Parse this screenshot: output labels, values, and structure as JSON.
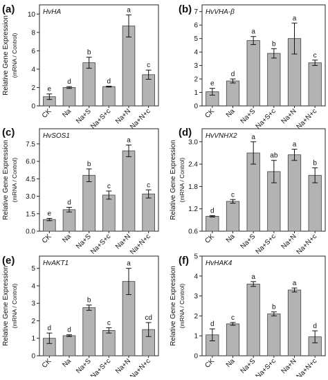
{
  "y_label_main": "Relative Gene Expression",
  "y_label_sub": "(mRNA / Control)",
  "colors": {
    "bar_fill": "#b3b3b3",
    "bar_stroke": "#404040",
    "axis": "#222222"
  },
  "chart_data": [
    {
      "panel": "(a)",
      "gene": "HvHA",
      "type": "bar",
      "categories": [
        "CK",
        "Na",
        "Na+S",
        "Na+S+c",
        "Na+N",
        "Na+N+c"
      ],
      "values": [
        1.0,
        2.0,
        4.7,
        2.1,
        8.7,
        3.4
      ],
      "errors": [
        0.3,
        0.1,
        0.6,
        0.05,
        1.2,
        0.5
      ],
      "significance": [
        "e",
        "d",
        "b",
        "d",
        "a",
        "c"
      ],
      "yticks": [
        0,
        2,
        4,
        6,
        8,
        10
      ],
      "ylim": [
        0,
        11
      ],
      "ytick_labels": [
        "0",
        "2",
        "4",
        "6",
        "8",
        "10"
      ]
    },
    {
      "panel": "(b)",
      "gene": "HvVHA-β",
      "type": "bar",
      "categories": [
        "CK",
        "Na",
        "Na+S",
        "Na+S+c",
        "Na+N",
        "Na+N+c"
      ],
      "values": [
        1.05,
        1.85,
        4.85,
        3.9,
        5.0,
        3.2
      ],
      "errors": [
        0.25,
        0.15,
        0.3,
        0.35,
        1.15,
        0.2
      ],
      "significance": [
        "e",
        "d",
        "a",
        "b",
        "a",
        "c"
      ],
      "yticks": [
        0,
        1,
        2,
        3,
        4,
        5,
        6,
        7
      ],
      "ylim": [
        0,
        7.5
      ],
      "ytick_labels": [
        "0",
        "1",
        "2",
        "3",
        "4",
        "5",
        "6",
        "7"
      ]
    },
    {
      "panel": "(c)",
      "gene": "HvSOS1",
      "type": "bar",
      "categories": [
        "CK",
        "Na",
        "Na+S",
        "Na+S+c",
        "Na+N",
        "Na+N+c"
      ],
      "values": [
        1.0,
        1.85,
        4.8,
        3.1,
        6.9,
        3.2
      ],
      "errors": [
        0.1,
        0.2,
        0.55,
        0.35,
        0.5,
        0.35
      ],
      "significance": [
        "e",
        "d",
        "b",
        "c",
        "a",
        "c"
      ],
      "yticks": [
        0,
        1.5,
        3.0,
        4.5,
        6.0,
        7.5
      ],
      "ylim": [
        0,
        8.8
      ],
      "ytick_labels": [
        "0.0",
        "1.5",
        "3.0",
        "4.5",
        "6.0",
        "7.5"
      ]
    },
    {
      "panel": "(d)",
      "gene": "HvVNHX2",
      "type": "bar",
      "categories": [
        "CK",
        "Na",
        "Na+S",
        "Na+S+c",
        "Na+N",
        "Na+N+c"
      ],
      "values": [
        1.0,
        1.4,
        2.7,
        2.2,
        2.65,
        2.1
      ],
      "errors": [
        0.02,
        0.05,
        0.3,
        0.3,
        0.15,
        0.2
      ],
      "significance": [
        "d",
        "c",
        "a",
        "ab",
        "a",
        "b"
      ],
      "yticks": [
        0.6,
        1.2,
        1.8,
        2.4,
        3.0
      ],
      "ylim": [
        0.6,
        3.35
      ],
      "ytick_labels": [
        "0.6",
        "1.2",
        "1.8",
        "2.4",
        "3.0"
      ]
    },
    {
      "panel": "(e)",
      "gene": "HvAKT1",
      "type": "bar",
      "categories": [
        "CK",
        "Na",
        "Na+S",
        "Na+S+c",
        "Na+N",
        "Na+N+c"
      ],
      "values": [
        1.0,
        1.15,
        2.75,
        1.45,
        4.25,
        1.5
      ],
      "errors": [
        0.3,
        0.05,
        0.15,
        0.15,
        0.75,
        0.4
      ],
      "significance": [
        "d",
        "d",
        "b",
        "c",
        "a",
        "cd"
      ],
      "yticks": [
        0,
        1,
        2,
        3,
        4,
        5
      ],
      "ylim": [
        0,
        5.7
      ],
      "ytick_labels": [
        "0",
        "1",
        "2",
        "3",
        "4",
        "5"
      ]
    },
    {
      "panel": "(f)",
      "gene": "HvHAK4",
      "type": "bar",
      "categories": [
        "CK",
        "Na",
        "Na+S",
        "Na+S+c",
        "Na+N",
        "Na+N+c"
      ],
      "values": [
        1.05,
        1.6,
        3.6,
        2.1,
        3.3,
        0.95
      ],
      "errors": [
        0.3,
        0.07,
        0.12,
        0.1,
        0.1,
        0.3
      ],
      "significance": [
        "d",
        "c",
        "a",
        "b",
        "a",
        "d"
      ],
      "yticks": [
        0,
        1,
        2,
        3,
        4,
        5
      ],
      "ylim": [
        0,
        5.0
      ],
      "ytick_labels": [
        "0",
        "1",
        "2",
        "3",
        "4",
        "5"
      ]
    }
  ]
}
